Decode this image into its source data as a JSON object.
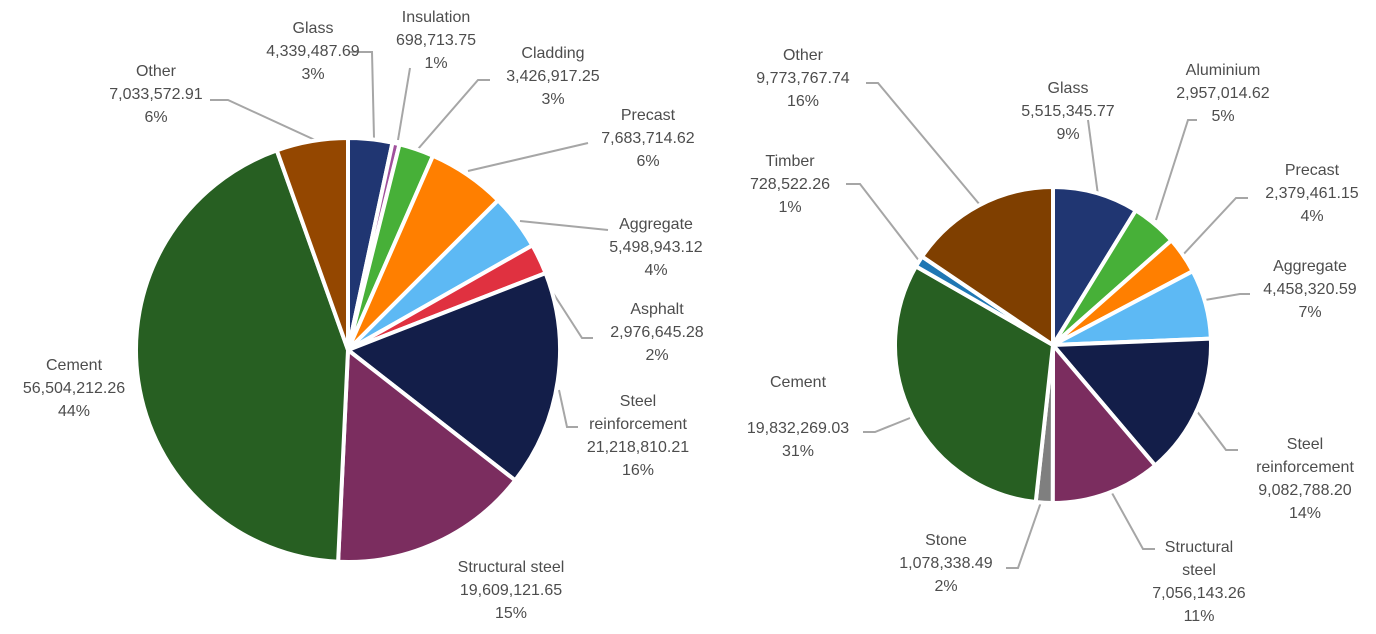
{
  "chart_data": [
    {
      "type": "pie",
      "slices": [
        {
          "name": "Glass",
          "value": 4339487.69,
          "value_label": "4,339,487.69",
          "percent_label": "3%",
          "color": "#203672"
        },
        {
          "name": "Insulation",
          "value": 698713.75,
          "value_label": "698,713.75",
          "percent_label": "1%",
          "color": "#a0509c"
        },
        {
          "name": "Cladding",
          "value": 3426917.25,
          "value_label": "3,426,917.25",
          "percent_label": "3%",
          "color": "#47b038"
        },
        {
          "name": "Precast",
          "value": 7683714.62,
          "value_label": "7,683,714.62",
          "percent_label": "6%",
          "color": "#ff7f00"
        },
        {
          "name": "Aggregate",
          "value": 5498943.12,
          "value_label": "5,498,943.12",
          "percent_label": "4%",
          "color": "#5db9f4"
        },
        {
          "name": "Asphalt",
          "value": 2976645.28,
          "value_label": "2,976,645.28",
          "percent_label": "2%",
          "color": "#e03140"
        },
        {
          "name": "Steel reinforcement",
          "value": 21218810.21,
          "value_label": "21,218,810.21",
          "percent_label": "16%",
          "color": "#131e49"
        },
        {
          "name": "Structural steel",
          "value": 19609121.65,
          "value_label": "19,609,121.65",
          "percent_label": "15%",
          "color": "#7b2d5f"
        },
        {
          "name": "Cement",
          "value": 56504212.26,
          "value_label": "56,504,212.26",
          "percent_label": "44%",
          "color": "#275f22"
        },
        {
          "name": "Other",
          "value": 7033572.91,
          "value_label": "7,033,572.91",
          "percent_label": "6%",
          "color": "#944700"
        }
      ]
    },
    {
      "type": "pie",
      "slices": [
        {
          "name": "Glass",
          "value": 5515345.77,
          "value_label": "5,515,345.77",
          "percent_label": "9%",
          "color": "#203672"
        },
        {
          "name": "Aluminium",
          "value": 2957014.62,
          "value_label": "2,957,014.62",
          "percent_label": "5%",
          "color": "#47b038"
        },
        {
          "name": "Precast",
          "value": 2379461.15,
          "value_label": "2,379,461.15",
          "percent_label": "4%",
          "color": "#ff7f00"
        },
        {
          "name": "Aggregate",
          "value": 4458320.59,
          "value_label": "4,458,320.59",
          "percent_label": "7%",
          "color": "#5db9f4"
        },
        {
          "name": "Steel reinforcement",
          "value": 9082788.2,
          "value_label": "9,082,788.20",
          "percent_label": "14%",
          "color": "#131e49"
        },
        {
          "name": "Structural steel",
          "value": 7056143.26,
          "value_label": "7,056,143.26",
          "percent_label": "11%",
          "color": "#7b2d5f"
        },
        {
          "name": "Stone",
          "value": 1078338.49,
          "value_label": "1,078,338.49",
          "percent_label": "2%",
          "color": "#7f7f7f"
        },
        {
          "name": "Cement",
          "value": 19832269.03,
          "value_label": "19,832,269.03",
          "percent_label": "31%",
          "color": "#275f22"
        },
        {
          "name": "Timber",
          "value": 728522.26,
          "value_label": "728,522.26",
          "percent_label": "1%",
          "color": "#1f77b4"
        },
        {
          "name": "Other",
          "value": 9773767.74,
          "value_label": "9,773,767.74",
          "percent_label": "16%",
          "color": "#7f3f00"
        }
      ]
    }
  ]
}
